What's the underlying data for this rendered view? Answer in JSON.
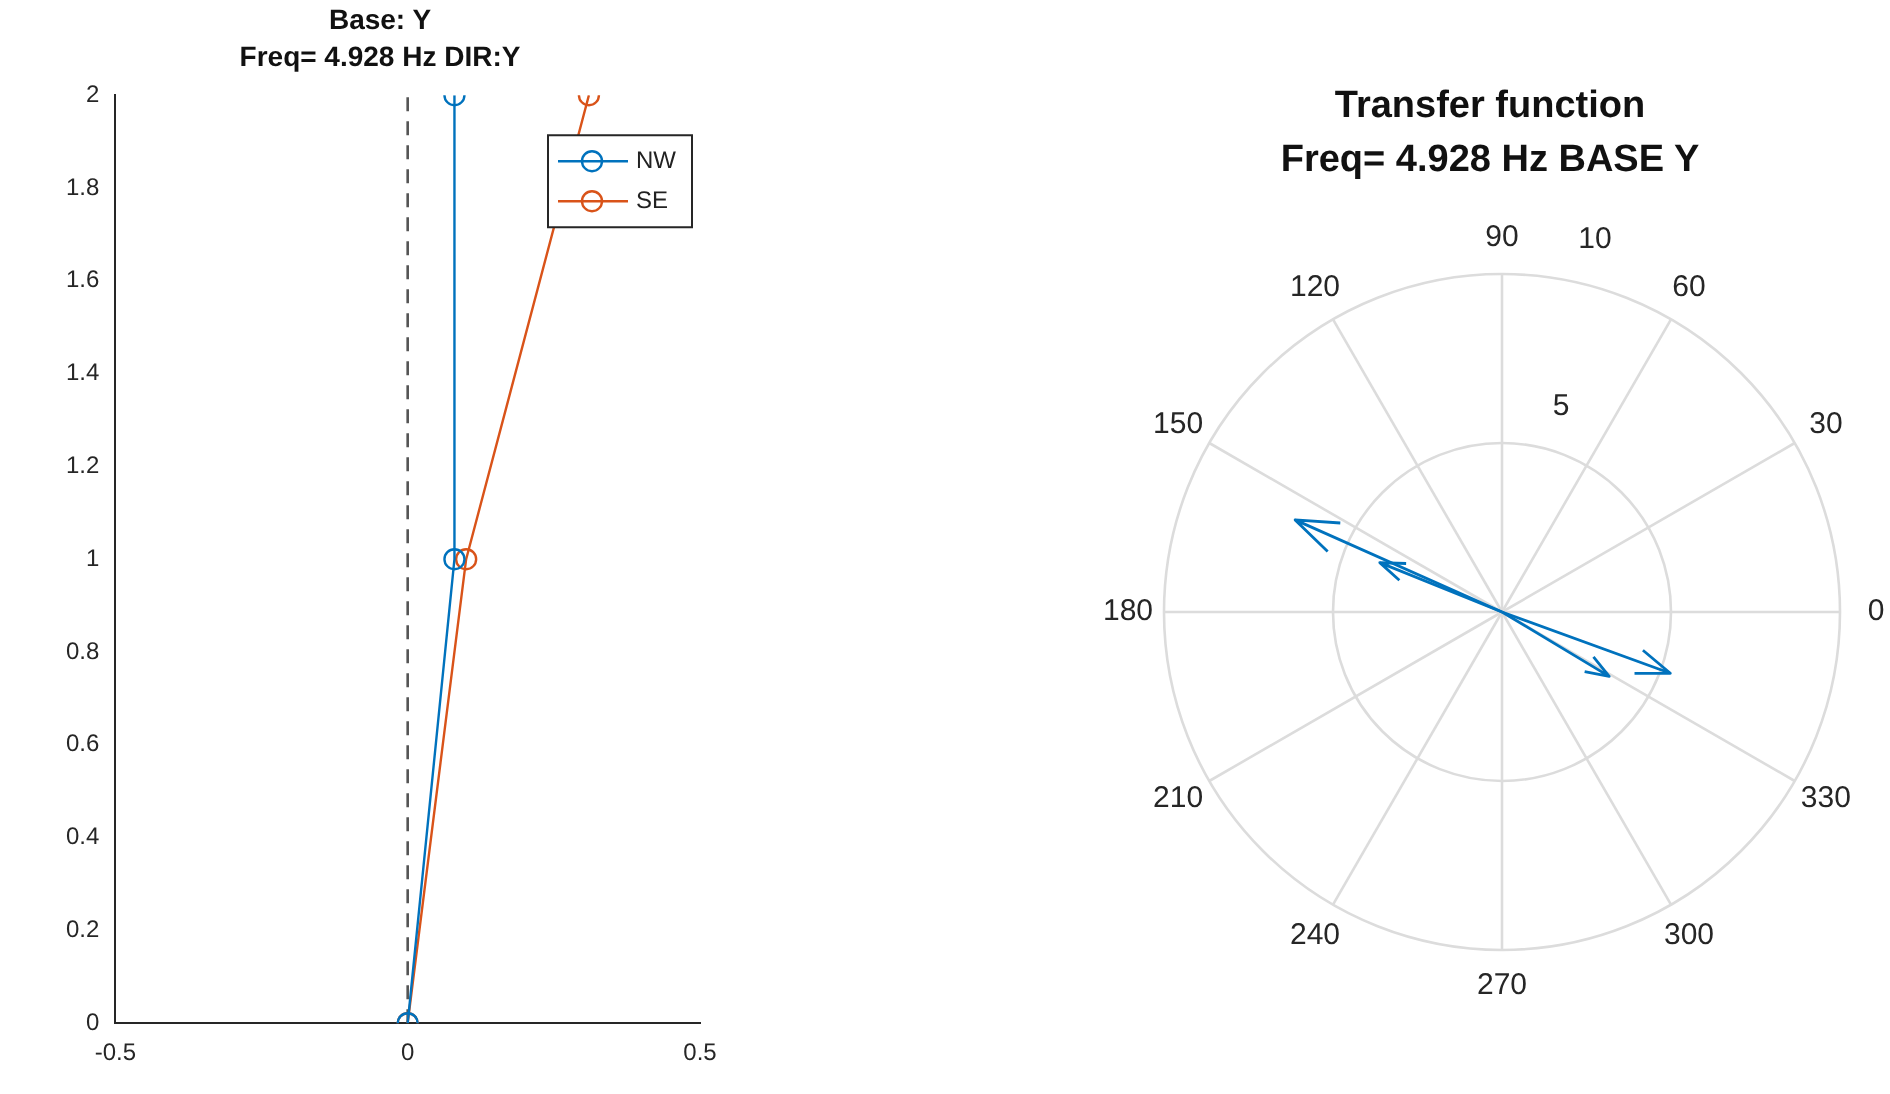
{
  "chart_data": [
    {
      "type": "line",
      "title": "Base: Y",
      "subtitle": "Freq= 4.928 Hz DIR:Y",
      "series": [
        {
          "name": "NW",
          "color": "#0072bd",
          "x": [
            0,
            0.08,
            0.08
          ],
          "values": [
            0,
            1,
            2
          ]
        },
        {
          "name": "SE",
          "color": "#d95319",
          "x": [
            0,
            0.1,
            0.31
          ],
          "values": [
            0,
            1,
            2
          ]
        }
      ],
      "xlim": [
        -0.5,
        0.5
      ],
      "xticks": [
        -0.5,
        0,
        0.5
      ],
      "ylim": [
        0,
        2
      ],
      "yticks": [
        0,
        0.2,
        0.4,
        0.6,
        0.8,
        1,
        1.2,
        1.4,
        1.6,
        1.8,
        2
      ],
      "ref_lines": [
        {
          "axis": "x",
          "value": 0,
          "color": "#555555",
          "line_style": "dashed"
        }
      ],
      "grid": false,
      "legend": "top right",
      "marker": "circle",
      "line_style": "solid"
    },
    {
      "type": "other",
      "title": "Transfer function",
      "subtitle": "Freq= 4.928 Hz BASE Y",
      "annotations": [
        "0",
        "30",
        "60",
        "90",
        "120",
        "150",
        "180",
        "210",
        "240",
        "270",
        "300",
        "330",
        "5",
        "10"
      ]
    }
  ]
}
